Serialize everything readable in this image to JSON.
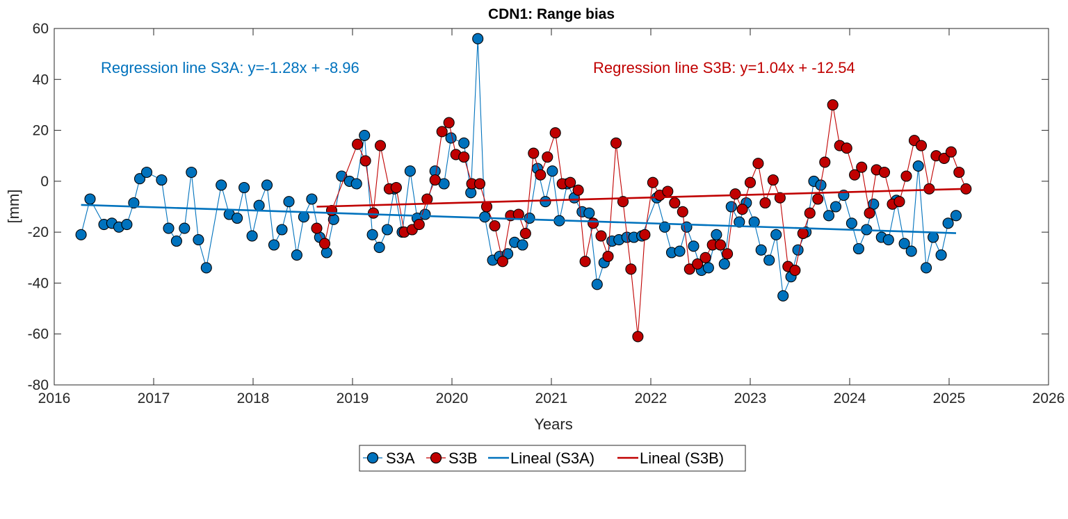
{
  "chart_data": {
    "type": "line",
    "title": "CDN1: Range bias",
    "xlabel": "Years",
    "ylabel": "[mm]",
    "xlim": [
      2016,
      2026
    ],
    "ylim": [
      -80,
      60
    ],
    "xticks": [
      2016,
      2017,
      2018,
      2019,
      2020,
      2021,
      2022,
      2023,
      2024,
      2025,
      2026
    ],
    "yticks": [
      -80,
      -60,
      -40,
      -20,
      0,
      20,
      40,
      60
    ],
    "grid": false,
    "legend_position": "bottom-center",
    "annotations": [
      {
        "text": "Regression line S3A: y=-1.28x + -8.96",
        "color": "#0072BD"
      },
      {
        "text": "Regression line S3B: y=1.04x + -12.54",
        "color": "#C00000"
      }
    ],
    "series": [
      {
        "name": "S3A",
        "kind": "line-marker",
        "color": "#0072BD",
        "x": [
          2016.27,
          2016.36,
          2016.5,
          2016.58,
          2016.65,
          2016.73,
          2016.8,
          2016.86,
          2016.93,
          2017.08,
          2017.15,
          2017.23,
          2017.31,
          2017.38,
          2017.45,
          2017.53,
          2017.68,
          2017.76,
          2017.84,
          2017.91,
          2017.99,
          2018.06,
          2018.14,
          2018.21,
          2018.29,
          2018.36,
          2018.44,
          2018.51,
          2018.59,
          2018.67,
          2018.74,
          2018.81,
          2018.89,
          2018.97,
          2019.04,
          2019.12,
          2019.2,
          2019.27,
          2019.35,
          2019.42,
          2019.5,
          2019.58,
          2019.65,
          2019.73,
          2019.83,
          2019.92,
          2019.99,
          2020.12,
          2020.19,
          2020.26,
          2020.33,
          2020.41,
          2020.48,
          2020.56,
          2020.63,
          2020.71,
          2020.78,
          2020.86,
          2020.94,
          2021.01,
          2021.08,
          2021.16,
          2021.23,
          2021.31,
          2021.38,
          2021.46,
          2021.53,
          2021.61,
          2021.68,
          2021.76,
          2021.83,
          2021.91,
          2022.06,
          2022.14,
          2022.21,
          2022.29,
          2022.36,
          2022.43,
          2022.51,
          2022.58,
          2022.66,
          2022.74,
          2022.81,
          2022.89,
          2022.96,
          2023.04,
          2023.11,
          2023.19,
          2023.26,
          2023.33,
          2023.41,
          2023.48,
          2023.56,
          2023.64,
          2023.71,
          2023.79,
          2023.86,
          2023.94,
          2024.02,
          2024.09,
          2024.17,
          2024.24,
          2024.32,
          2024.39,
          2024.47,
          2024.55,
          2024.62,
          2024.69,
          2024.77,
          2024.84,
          2024.92,
          2024.99,
          2025.07
        ],
        "values": [
          -21,
          -7,
          -17,
          -16.5,
          -18,
          -17,
          -8.5,
          1,
          3.5,
          0.5,
          -18.5,
          -23.5,
          -18.5,
          3.5,
          -23,
          -34,
          -1.5,
          -13,
          -14.5,
          -2.5,
          -21.5,
          -9.5,
          -1.5,
          -25,
          -19,
          -8,
          -29,
          -14,
          -7,
          -22,
          -28,
          -15,
          2,
          0,
          -1,
          18,
          -21,
          -26,
          -19,
          -3,
          -20,
          4,
          -14.5,
          -13,
          4,
          -1,
          17,
          15,
          -4.5,
          56,
          -14,
          -31,
          -29.5,
          -28.5,
          -24,
          -25,
          -14.5,
          5,
          -8,
          4,
          -15.5,
          -1,
          -6.5,
          -12,
          -12.5,
          -40.5,
          -32,
          -23.5,
          -23,
          -22,
          -22,
          -21.5,
          -6.5,
          -18,
          -28,
          -27.5,
          -18,
          -25.5,
          -35,
          -34,
          -21,
          -32.5,
          -10,
          -16,
          -8.5,
          -16,
          -27,
          -31,
          -21,
          -45,
          -37.5,
          -27,
          -20,
          0,
          -1.5,
          -13.5,
          -10,
          -5.5,
          -16.5,
          -26.5,
          -19,
          -9,
          -22,
          -23,
          -7.5,
          -24.5,
          -27.5,
          6,
          -34,
          -22,
          -29,
          -16.5,
          -13.5
        ]
      },
      {
        "name": "S3B",
        "kind": "line-marker",
        "color": "#C00000",
        "x": [
          2018.64,
          2018.72,
          2018.79,
          2019.05,
          2019.13,
          2019.21,
          2019.28,
          2019.37,
          2019.44,
          2019.52,
          2019.6,
          2019.67,
          2019.75,
          2019.83,
          2019.9,
          2019.97,
          2020.04,
          2020.12,
          2020.2,
          2020.28,
          2020.35,
          2020.43,
          2020.51,
          2020.59,
          2020.67,
          2020.74,
          2020.82,
          2020.89,
          2020.96,
          2021.04,
          2021.11,
          2021.19,
          2021.27,
          2021.34,
          2021.42,
          2021.5,
          2021.57,
          2021.65,
          2021.72,
          2021.8,
          2021.87,
          2021.94,
          2022.02,
          2022.09,
          2022.17,
          2022.24,
          2022.32,
          2022.39,
          2022.47,
          2022.55,
          2022.62,
          2022.7,
          2022.77,
          2022.85,
          2022.92,
          2023.0,
          2023.08,
          2023.15,
          2023.23,
          2023.3,
          2023.38,
          2023.45,
          2023.53,
          2023.6,
          2023.68,
          2023.75,
          2023.83,
          2023.9,
          2023.97,
          2024.05,
          2024.12,
          2024.2,
          2024.27,
          2024.35,
          2024.43,
          2024.5,
          2024.57,
          2024.65,
          2024.72,
          2024.8,
          2024.87,
          2024.95,
          2025.02,
          2025.1,
          2025.17
        ],
        "values": [
          -18.5,
          -24.5,
          -11.5,
          14.5,
          8,
          -12.5,
          14,
          -3,
          -2.5,
          -20,
          -19,
          -17,
          -7,
          0.5,
          19.5,
          23,
          10.5,
          9.5,
          -1,
          -1,
          -10,
          -17.5,
          -31.5,
          -13.5,
          -13,
          -20.5,
          11,
          2.5,
          9.5,
          19,
          -1,
          -0.5,
          -3.5,
          -31.5,
          -16.5,
          -21.5,
          -29.5,
          15,
          -8,
          -34.5,
          -61,
          -21,
          -0.5,
          -5.5,
          -4,
          -8.5,
          -12,
          -34.5,
          -32.5,
          -30,
          -25,
          -25,
          -28.5,
          -5,
          -11,
          -0.5,
          7,
          -8.5,
          0.5,
          -6.5,
          -33.5,
          -35,
          -20.5,
          -12.5,
          -7,
          7.5,
          30,
          14,
          13,
          2.5,
          5.5,
          -12.5,
          4.5,
          3.5,
          -9,
          -8,
          2,
          16,
          14,
          -3,
          10,
          9,
          11.5,
          3.5,
          -3
        ]
      },
      {
        "name": "Lineal (S3A)",
        "kind": "line",
        "color": "#0072BD",
        "x": [
          2016.27,
          2025.07
        ],
        "values": [
          -9.3,
          -20.4
        ]
      },
      {
        "name": "Lineal (S3B)",
        "kind": "line",
        "color": "#C00000",
        "x": [
          2018.64,
          2025.17
        ],
        "values": [
          -10,
          -3
        ]
      }
    ]
  }
}
